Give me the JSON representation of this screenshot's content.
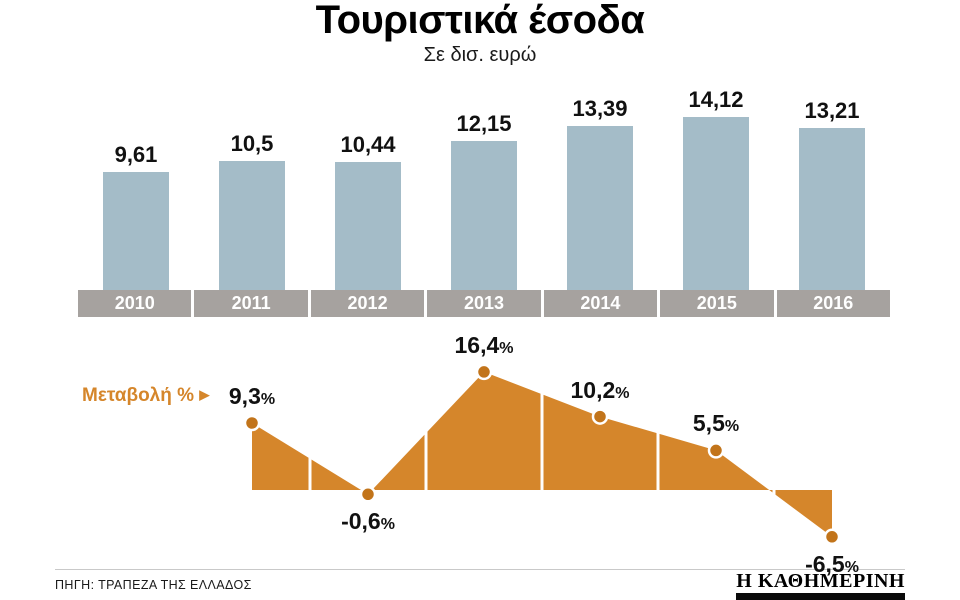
{
  "title": "Τουριστικά έσοδα",
  "subtitle": "Σε δισ. ευρώ",
  "chart_data": [
    {
      "type": "bar",
      "title": "Τουριστικά έσοδα",
      "subtitle": "Σε δισ. ευρώ",
      "categories": [
        "2010",
        "2011",
        "2012",
        "2013",
        "2014",
        "2015",
        "2016"
      ],
      "values": [
        9.61,
        10.5,
        10.44,
        12.15,
        13.39,
        14.12,
        13.21
      ],
      "value_labels": [
        "9,61",
        "10,5",
        "10,44",
        "12,15",
        "13,39",
        "14,12",
        "13,21"
      ],
      "ylim": [
        0,
        15
      ],
      "unit": "δισ. ευρώ",
      "bar_color": "#a4bcc8",
      "axis_band_color": "#a6a29f",
      "grid": false,
      "legend": "none"
    },
    {
      "type": "area",
      "series_label": "Μεταβολή %",
      "categories": [
        "2011",
        "2012",
        "2013",
        "2014",
        "2015",
        "2016"
      ],
      "values": [
        9.3,
        -0.6,
        16.4,
        10.2,
        5.5,
        -6.5
      ],
      "value_labels": [
        "9,3",
        "-0,6",
        "16,4",
        "10,2",
        "5,5",
        "-6,5"
      ],
      "unit": "%",
      "baseline": 0,
      "ylim": [
        -8,
        18
      ],
      "color": "#d5862b",
      "dot_color": "#c2741a",
      "divider_color": "#ffffff",
      "grid": false,
      "legend": "none"
    }
  ],
  "footer": {
    "source": "ΠΗΓΗ: ΤΡΑΠΕΖΑ ΤΗΣ ΕΛΛΑΔΟΣ",
    "logo": "Η ΚΑΘΗΜΕΡΙΝΗ"
  }
}
